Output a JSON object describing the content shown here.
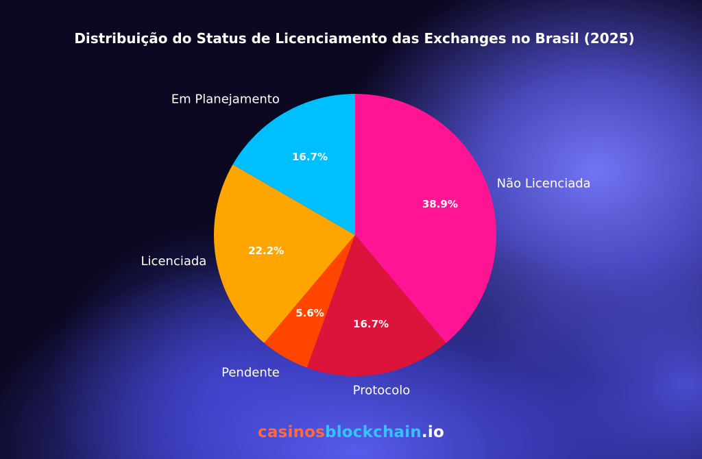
{
  "chart_data": {
    "type": "pie",
    "title": "Distribuição do Status de Licenciamento das Exchanges no Brasil (2025)",
    "start_angle_deg": -90,
    "direction": "clockwise",
    "slices": [
      {
        "label": "Não Licenciada",
        "value": 38.9,
        "value_label": "38.9%",
        "color": "#ff1493"
      },
      {
        "label": "Protocolo",
        "value": 16.7,
        "value_label": "16.7%",
        "color": "#dc143c"
      },
      {
        "label": "Pendente",
        "value": 5.6,
        "value_label": "5.6%",
        "color": "#ff4500"
      },
      {
        "label": "Licenciada",
        "value": 22.2,
        "value_label": "22.2%",
        "color": "#ffa500"
      },
      {
        "label": "Em Planejamento",
        "value": 16.7,
        "value_label": "16.7%",
        "color": "#00bfff"
      }
    ]
  },
  "branding": {
    "part1": "casinos",
    "part2": "blockchain",
    "part3": ".io"
  }
}
